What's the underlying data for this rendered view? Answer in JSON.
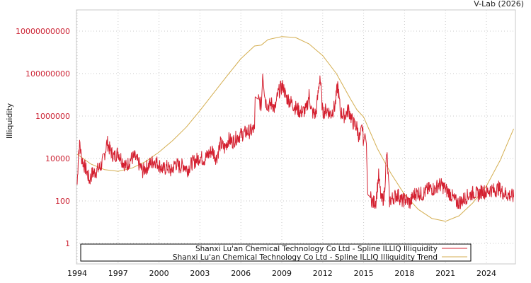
{
  "credit": "V-Lab (2026)",
  "chart_data": {
    "type": "line",
    "title": "",
    "xlabel": "",
    "ylabel": "Illiquidity",
    "yscale": "log",
    "ylim": [
      0.1,
      300000000000
    ],
    "xlim": [
      1994.0,
      2026.0
    ],
    "grid": true,
    "legend_position": "bottom-inside",
    "y_ticks": [
      {
        "value": 1,
        "label": "1"
      },
      {
        "value": 100,
        "label": "100"
      },
      {
        "value": 10000,
        "label": "10000"
      },
      {
        "value": 1000000,
        "label": "1000000"
      },
      {
        "value": 100000000,
        "label": "100000000"
      },
      {
        "value": 10000000000,
        "label": "10000000000"
      }
    ],
    "x_ticks": [
      "1994",
      "1997",
      "2000",
      "2003",
      "2006",
      "2009",
      "2012",
      "2015",
      "2018",
      "2021",
      "2024"
    ],
    "series": [
      {
        "name": "Shanxi Lu'an Chemical Technology Co Ltd - Spline ILLIQ Illiquidity",
        "color": "#d42030",
        "points": [
          [
            1994.0,
            600
          ],
          [
            1994.1,
            20000
          ],
          [
            1994.2,
            50000
          ],
          [
            1994.3,
            12000
          ],
          [
            1994.5,
            5000
          ],
          [
            1994.7,
            2500
          ],
          [
            1994.9,
            900
          ],
          [
            1995.1,
            2000
          ],
          [
            1995.4,
            2500
          ],
          [
            1995.7,
            4000
          ],
          [
            1995.9,
            8000
          ],
          [
            1996.2,
            60000
          ],
          [
            1996.4,
            25000
          ],
          [
            1996.7,
            12000
          ],
          [
            1997.0,
            20000
          ],
          [
            1997.3,
            8000
          ],
          [
            1997.6,
            4000
          ],
          [
            1997.9,
            9000
          ],
          [
            1998.2,
            12000
          ],
          [
            1998.5,
            6000
          ],
          [
            1998.8,
            2500
          ],
          [
            1999.1,
            4000
          ],
          [
            1999.4,
            6000
          ],
          [
            1999.7,
            8000
          ],
          [
            2000.0,
            5000
          ],
          [
            2000.3,
            3000
          ],
          [
            2000.6,
            4000
          ],
          [
            2000.9,
            2500
          ],
          [
            2001.2,
            6000
          ],
          [
            2001.5,
            4000
          ],
          [
            2001.8,
            5000
          ],
          [
            2002.1,
            3000
          ],
          [
            2002.4,
            6000
          ],
          [
            2002.7,
            8000
          ],
          [
            2003.0,
            12000
          ],
          [
            2003.3,
            9000
          ],
          [
            2003.6,
            15000
          ],
          [
            2003.9,
            25000
          ],
          [
            2004.2,
            10000
          ],
          [
            2004.5,
            50000
          ],
          [
            2004.8,
            30000
          ],
          [
            2005.1,
            80000
          ],
          [
            2005.4,
            60000
          ],
          [
            2005.7,
            100000
          ],
          [
            2005.9,
            120000
          ],
          [
            2006.2,
            150000
          ],
          [
            2006.5,
            180000
          ],
          [
            2006.8,
            200000
          ],
          [
            2007.0,
            250000
          ],
          [
            2007.05,
            8000000
          ],
          [
            2007.3,
            6000000
          ],
          [
            2007.5,
            3000000
          ],
          [
            2007.6,
            120000000
          ],
          [
            2007.8,
            5000000
          ],
          [
            2008.0,
            3000000
          ],
          [
            2008.3,
            4000000
          ],
          [
            2008.5,
            2000000
          ],
          [
            2008.7,
            10000000
          ],
          [
            2008.9,
            20000000
          ],
          [
            2009.1,
            25000000
          ],
          [
            2009.3,
            8000000
          ],
          [
            2009.6,
            5000000
          ],
          [
            2010.0,
            2500000
          ],
          [
            2010.4,
            1500000
          ],
          [
            2010.8,
            2000000
          ],
          [
            2011.0,
            10000000
          ],
          [
            2011.2,
            1500000
          ],
          [
            2011.5,
            1200000
          ],
          [
            2011.8,
            80000000
          ],
          [
            2012.0,
            1500000
          ],
          [
            2012.3,
            2000000
          ],
          [
            2012.6,
            1200000
          ],
          [
            2012.9,
            3000000
          ],
          [
            2013.1,
            30000000
          ],
          [
            2013.3,
            1500000
          ],
          [
            2013.6,
            1000000
          ],
          [
            2013.9,
            2000000
          ],
          [
            2014.2,
            500000
          ],
          [
            2014.5,
            300000
          ],
          [
            2014.7,
            80000
          ],
          [
            2014.9,
            300000
          ],
          [
            2015.0,
            60000
          ],
          [
            2015.1,
            150000
          ],
          [
            2015.2,
            50000
          ],
          [
            2015.3,
            200
          ],
          [
            2015.5,
            150
          ],
          [
            2015.7,
            80
          ],
          [
            2015.9,
            100
          ],
          [
            2016.1,
            1500
          ],
          [
            2016.3,
            100
          ],
          [
            2016.5,
            150
          ],
          [
            2016.7,
            20000
          ],
          [
            2016.9,
            100
          ],
          [
            2017.2,
            150
          ],
          [
            2017.5,
            200
          ],
          [
            2017.8,
            100
          ],
          [
            2018.1,
            120
          ],
          [
            2018.4,
            80
          ],
          [
            2018.7,
            200
          ],
          [
            2019.0,
            250
          ],
          [
            2019.3,
            200
          ],
          [
            2019.6,
            300
          ],
          [
            2019.9,
            400
          ],
          [
            2020.2,
            350
          ],
          [
            2020.5,
            600
          ],
          [
            2020.8,
            500
          ],
          [
            2021.1,
            300
          ],
          [
            2021.4,
            200
          ],
          [
            2021.7,
            100
          ],
          [
            2021.9,
            80
          ],
          [
            2022.2,
            100
          ],
          [
            2022.5,
            150
          ],
          [
            2022.8,
            200
          ],
          [
            2023.1,
            250
          ],
          [
            2023.4,
            200
          ],
          [
            2023.7,
            300
          ],
          [
            2024.0,
            250
          ],
          [
            2024.3,
            350
          ],
          [
            2024.6,
            300
          ],
          [
            2024.9,
            400
          ],
          [
            2025.2,
            250
          ],
          [
            2025.5,
            200
          ],
          [
            2025.8,
            180
          ],
          [
            2026.0,
            150
          ]
        ]
      },
      {
        "name": "Shanxi Lu'an Chemical Technology Co Ltd - Spline ILLIQ Illiquidity Trend",
        "color": "#d4ae50",
        "points": [
          [
            1994.0,
            16000
          ],
          [
            1995.0,
            5500
          ],
          [
            1996.0,
            3000
          ],
          [
            1997.0,
            2500
          ],
          [
            1998.0,
            3500
          ],
          [
            1999.0,
            7000
          ],
          [
            2000.0,
            20000
          ],
          [
            2001.0,
            70000
          ],
          [
            2002.0,
            300000
          ],
          [
            2003.0,
            1800000
          ],
          [
            2004.0,
            12000000
          ],
          [
            2005.0,
            80000000
          ],
          [
            2006.0,
            500000000
          ],
          [
            2007.0,
            2000000000
          ],
          [
            2007.5,
            2200000000
          ],
          [
            2008.0,
            4000000000
          ],
          [
            2009.0,
            5500000000
          ],
          [
            2010.0,
            5000000000
          ],
          [
            2011.0,
            2500000000
          ],
          [
            2012.0,
            700000000
          ],
          [
            2013.0,
            100000000
          ],
          [
            2014.0,
            7000000
          ],
          [
            2014.5,
            2000000
          ],
          [
            2015.0,
            900000
          ],
          [
            2016.0,
            30000
          ],
          [
            2017.0,
            2000
          ],
          [
            2018.0,
            200
          ],
          [
            2019.0,
            40
          ],
          [
            2020.0,
            15
          ],
          [
            2021.0,
            11
          ],
          [
            2022.0,
            20
          ],
          [
            2023.0,
            80
          ],
          [
            2024.0,
            500
          ],
          [
            2025.0,
            8000
          ],
          [
            2026.0,
            250000
          ]
        ]
      }
    ]
  }
}
